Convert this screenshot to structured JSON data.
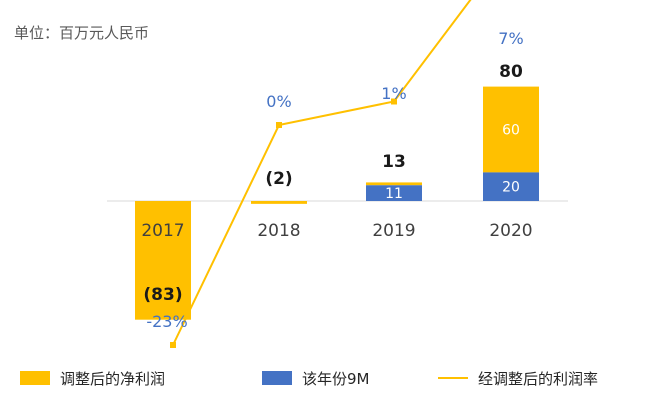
{
  "unit_label": "单位：百万元人民币",
  "colors": {
    "adjusted": "#FFC000",
    "nine_month": "#4472C4",
    "margin": "#FFC000",
    "margin_label": "#4472C4"
  },
  "chart_data": {
    "type": "bar",
    "categories": [
      "2017",
      "2018",
      "2019",
      "2020"
    ],
    "series": [
      {
        "name": "调整后的净利润",
        "values": [
          -83,
          -2,
          2,
          60
        ]
      },
      {
        "name": "该年份9M",
        "values": [
          0,
          0,
          11,
          20
        ]
      },
      {
        "name": "经调整后的利润率",
        "type": "line",
        "values": [
          -23,
          0,
          1,
          7
        ],
        "unit": "%"
      }
    ],
    "bar_labels": {
      "adjusted": [
        "",
        "",
        "",
        "60"
      ],
      "nine_month": [
        "",
        "",
        "11",
        "20"
      ]
    },
    "total_labels": [
      "(83)",
      "(2)",
      "13",
      "80"
    ],
    "margin_labels": [
      "-23%",
      "0%",
      "1%",
      "7%"
    ],
    "legend": {
      "position": "bottom"
    }
  },
  "legend": {
    "adjusted": "调整后的净利润",
    "nine_month": "该年份9M",
    "margin": "经调整后的利润率"
  }
}
